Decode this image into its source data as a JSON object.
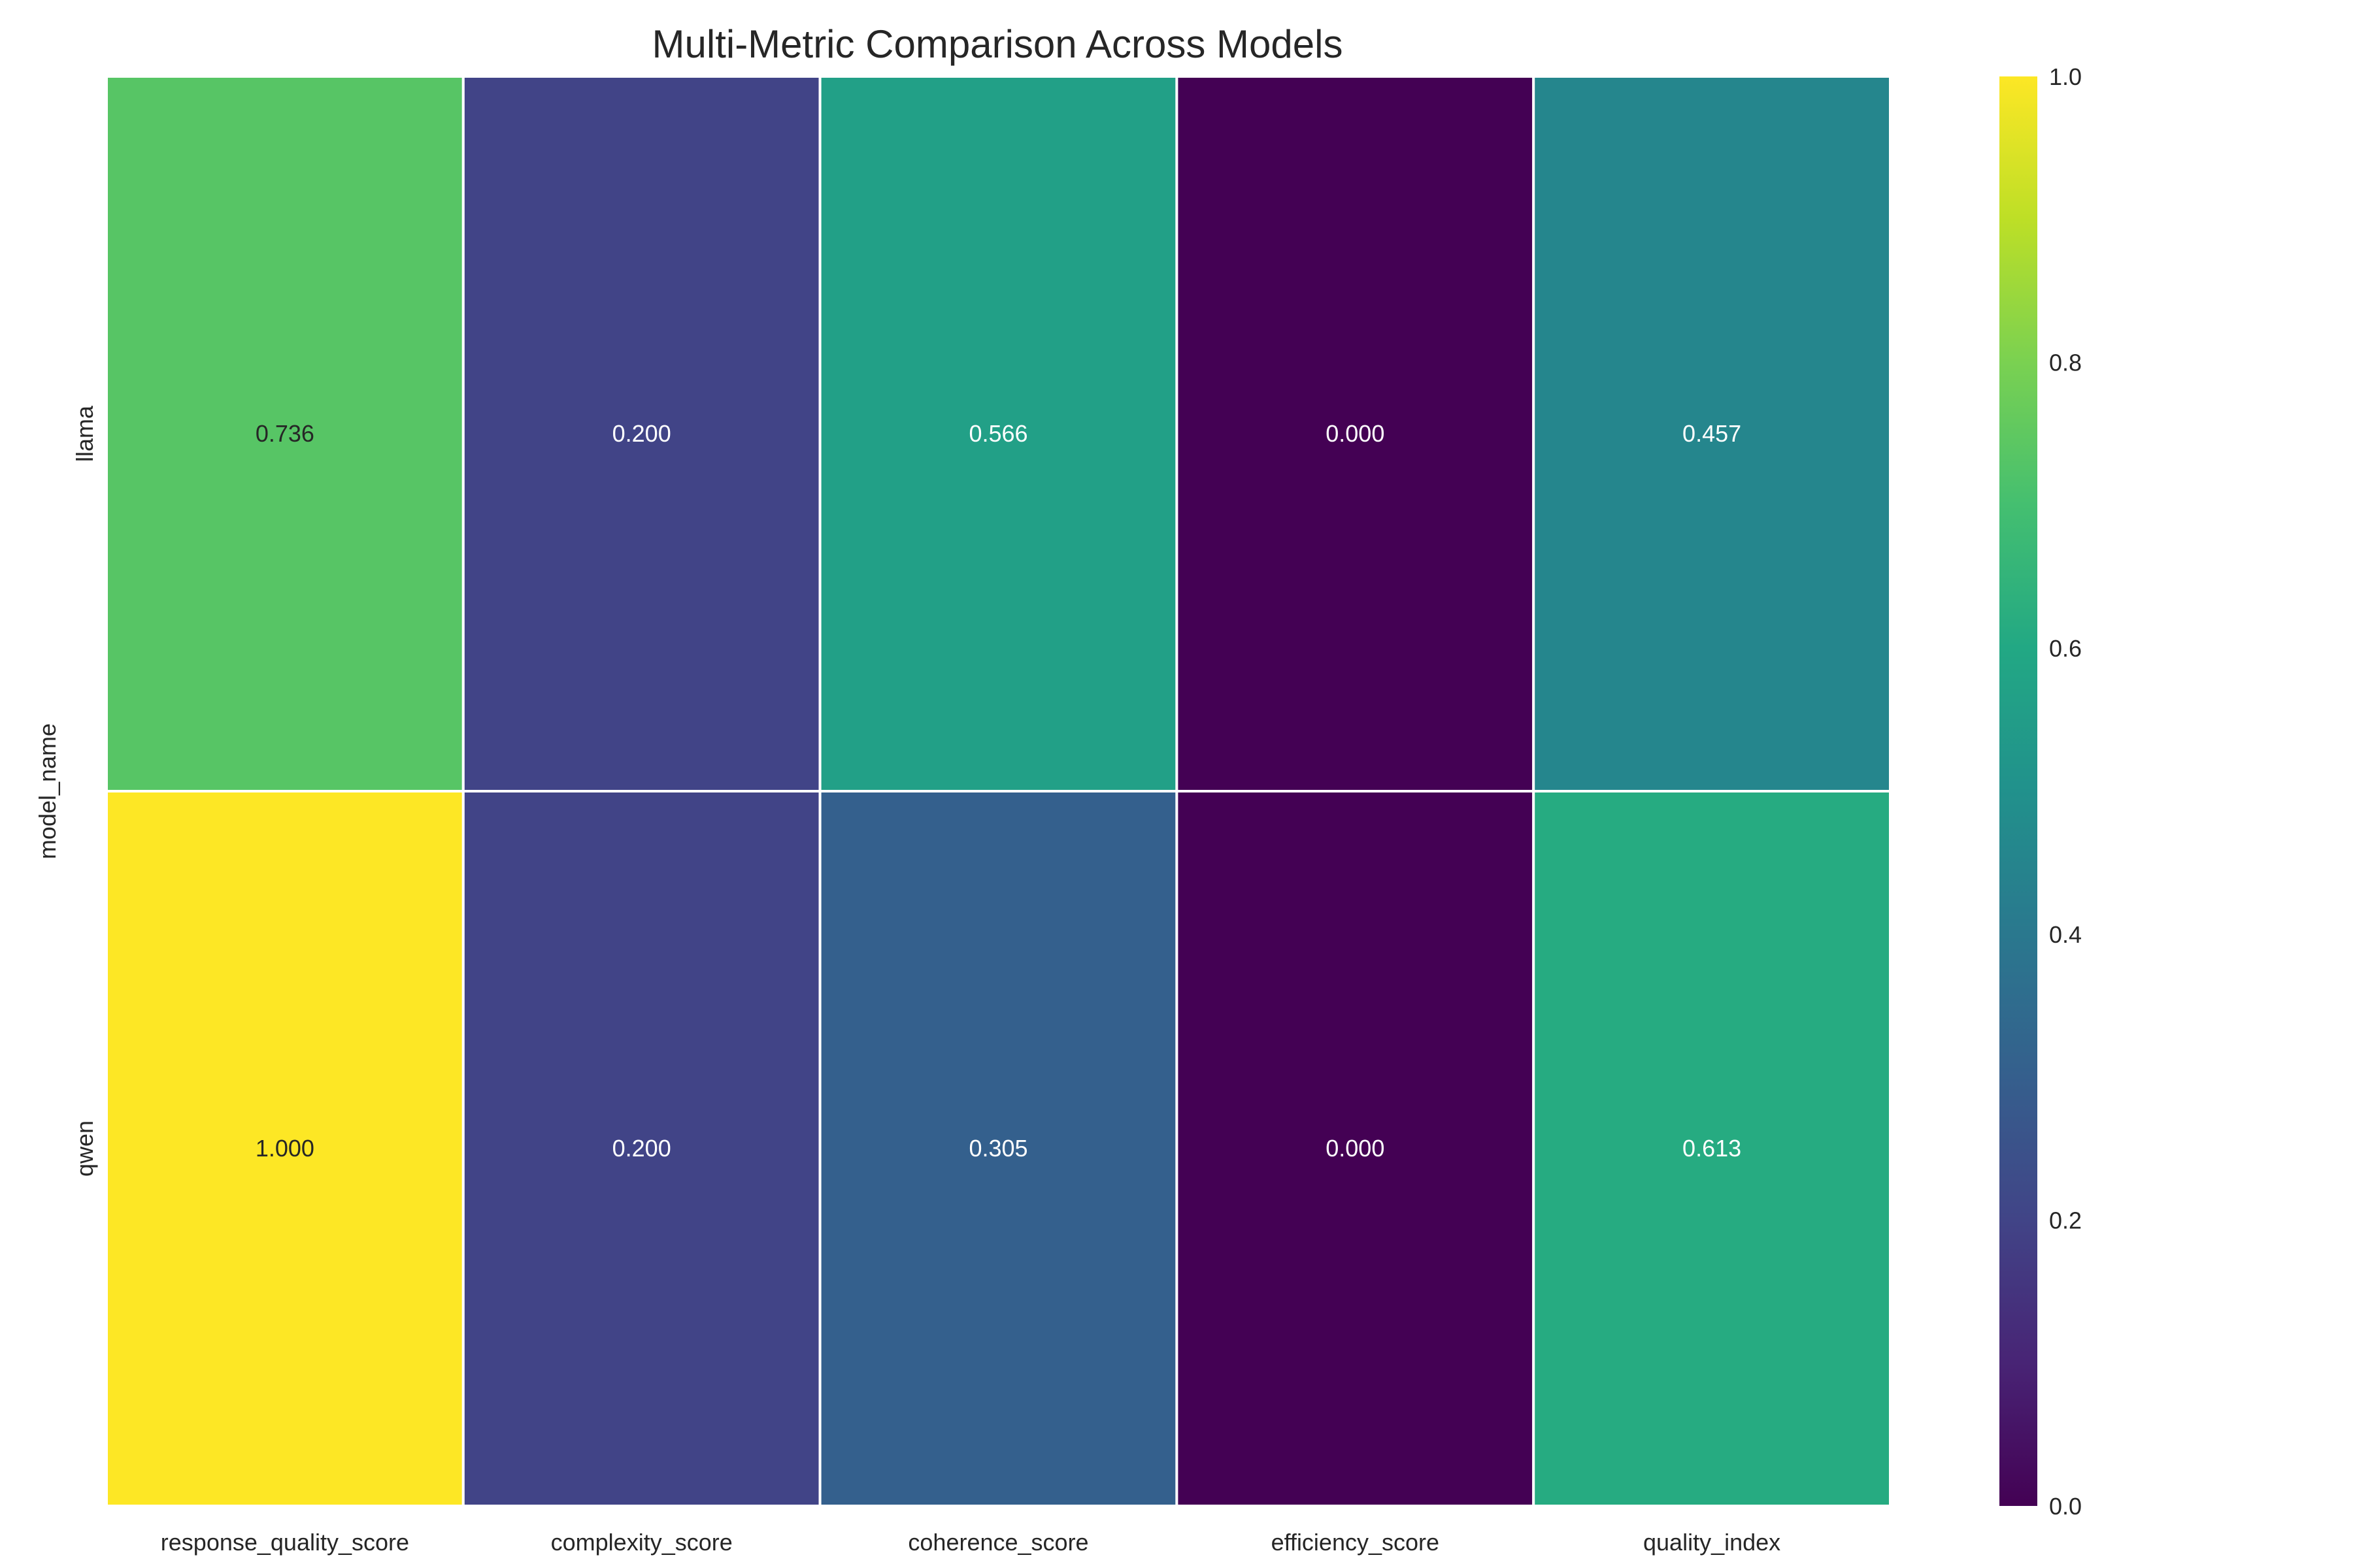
{
  "chart_data": {
    "type": "heatmap",
    "title": "Multi-Metric Comparison Across Models",
    "ylabel": "model_name",
    "xlabel": "",
    "x_categories": [
      "response_quality_score",
      "complexity_score",
      "coherence_score",
      "efficiency_score",
      "quality_index"
    ],
    "y_categories": [
      "llama",
      "qwen"
    ],
    "values": [
      [
        0.736,
        0.2,
        0.566,
        0.0,
        0.457
      ],
      [
        1.0,
        0.2,
        0.305,
        0.0,
        0.613
      ]
    ],
    "value_labels": [
      [
        "0.736",
        "0.200",
        "0.566",
        "0.000",
        "0.457"
      ],
      [
        "1.000",
        "0.200",
        "0.305",
        "0.000",
        "0.613"
      ]
    ],
    "colormap": "viridis",
    "vmin": 0,
    "vmax": 1,
    "colorbar_ticks": [
      0.0,
      0.2,
      0.4,
      0.6,
      0.8,
      1.0
    ],
    "colorbar_tick_labels": [
      "0.0",
      "0.2",
      "0.4",
      "0.6",
      "0.8",
      "1.0"
    ],
    "grid": false,
    "cell_border_color": "#ffffff"
  }
}
